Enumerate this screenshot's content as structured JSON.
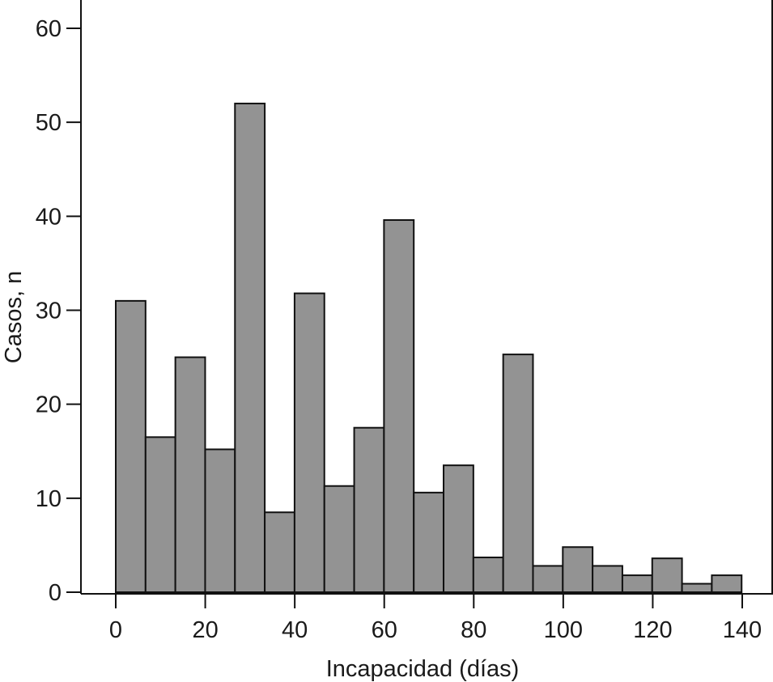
{
  "chart_data": {
    "type": "bar",
    "title": "",
    "xlabel": "Incapacidad (días)",
    "ylabel": "Casos, n",
    "xlim": [
      -7,
      147
    ],
    "ylim": [
      0,
      62
    ],
    "x_ticks": [
      0,
      20,
      40,
      60,
      80,
      100,
      120,
      140
    ],
    "y_ticks": [
      0,
      10,
      20,
      30,
      40,
      50,
      60
    ],
    "grid": false,
    "bin_width": 6.66,
    "bins": [
      {
        "x0": 0.0,
        "x1": 6.66,
        "value": 31
      },
      {
        "x0": 6.66,
        "x1": 13.32,
        "value": 16.5
      },
      {
        "x0": 13.32,
        "x1": 19.98,
        "value": 25
      },
      {
        "x0": 19.98,
        "x1": 26.64,
        "value": 15.2
      },
      {
        "x0": 26.64,
        "x1": 33.3,
        "value": 52
      },
      {
        "x0": 33.3,
        "x1": 39.96,
        "value": 8.5
      },
      {
        "x0": 39.96,
        "x1": 46.62,
        "value": 31.8
      },
      {
        "x0": 46.62,
        "x1": 53.28,
        "value": 11.3
      },
      {
        "x0": 53.28,
        "x1": 59.94,
        "value": 17.5
      },
      {
        "x0": 59.94,
        "x1": 66.6,
        "value": 39.6
      },
      {
        "x0": 66.6,
        "x1": 73.26,
        "value": 10.6
      },
      {
        "x0": 73.26,
        "x1": 79.92,
        "value": 13.5
      },
      {
        "x0": 79.92,
        "x1": 86.58,
        "value": 3.7
      },
      {
        "x0": 86.58,
        "x1": 93.24,
        "value": 25.3
      },
      {
        "x0": 93.24,
        "x1": 99.9,
        "value": 2.8
      },
      {
        "x0": 99.9,
        "x1": 106.56,
        "value": 4.8
      },
      {
        "x0": 106.56,
        "x1": 113.22,
        "value": 2.8
      },
      {
        "x0": 113.22,
        "x1": 119.88,
        "value": 1.8
      },
      {
        "x0": 119.88,
        "x1": 126.54,
        "value": 3.6
      },
      {
        "x0": 126.54,
        "x1": 133.2,
        "value": 0.9
      },
      {
        "x0": 133.2,
        "x1": 139.86,
        "value": 1.8
      }
    ]
  },
  "colors": {
    "bar_fill": "#939393",
    "bar_stroke": "#111111",
    "axis": "#111111",
    "text": "#1a1a1a"
  }
}
